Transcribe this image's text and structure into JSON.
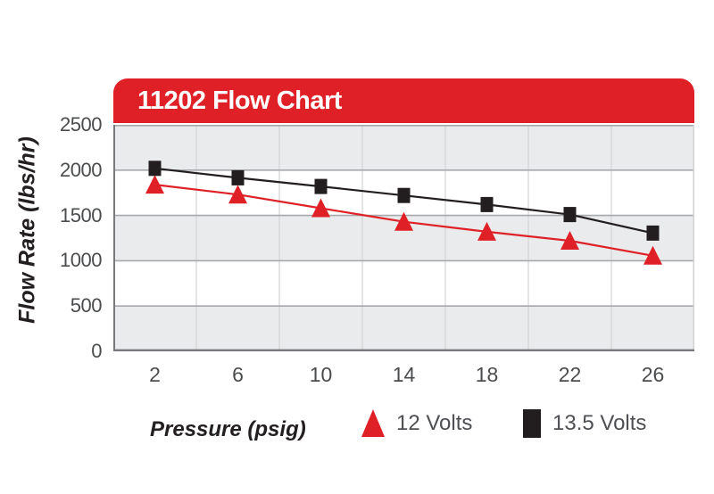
{
  "chart_data": {
    "type": "line",
    "title": "11202 Flow Chart",
    "xlabel": "Pressure (psig)",
    "ylabel": "Flow Rate (lbs/hr)",
    "categories": [
      "2",
      "6",
      "10",
      "14",
      "18",
      "22",
      "26"
    ],
    "series": [
      {
        "name": "12 Volts",
        "marker": "triangle",
        "color": "#df2127",
        "values": [
          1840,
          1730,
          1580,
          1430,
          1320,
          1220,
          1055
        ]
      },
      {
        "name": "13.5 Volts",
        "marker": "square",
        "color": "#221e1f",
        "values": [
          2020,
          1915,
          1820,
          1720,
          1620,
          1510,
          1305
        ]
      }
    ],
    "ylim": [
      0,
      2500
    ],
    "yticks": [
      0,
      500,
      1000,
      1500,
      2000,
      2500
    ],
    "grid": {
      "horizontal": true,
      "vertical": true,
      "banded_rows": true
    },
    "legend_position": "bottom",
    "colors": {
      "header": "#df2127",
      "band": "#e9ebed",
      "hgrid": "#a6a8ab",
      "vgrid": "#d2d4d5",
      "axis": "#77797c",
      "title_text": "#ffffff",
      "tick_text": "#4a4c4e",
      "legend_text": "#4d4f52",
      "axis_title_text": "#231f20"
    }
  }
}
